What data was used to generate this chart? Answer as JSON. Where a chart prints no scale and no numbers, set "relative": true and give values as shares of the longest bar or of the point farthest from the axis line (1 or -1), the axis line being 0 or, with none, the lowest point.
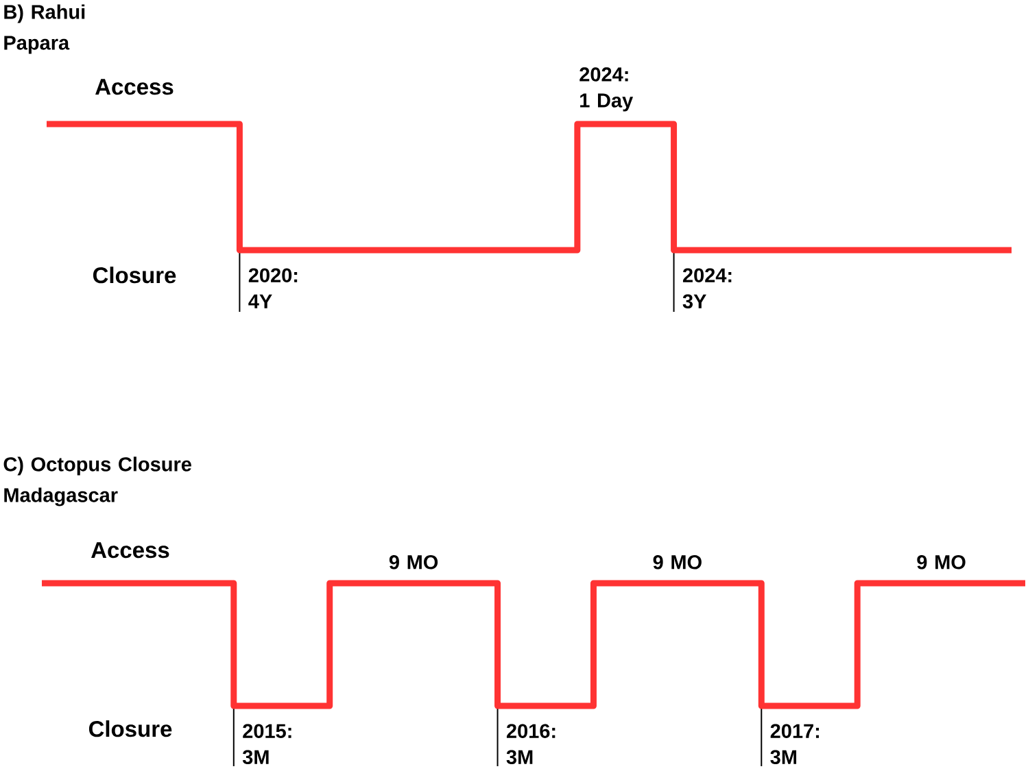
{
  "chart_data": [
    {
      "type": "step",
      "title": "B) Rahui Papara",
      "relative": true,
      "categories": [
        null,
        null,
        null,
        null,
        null,
        null,
        null,
        null,
        null,
        null,
        null,
        null,
        null,
        null,
        null,
        null,
        null,
        null,
        null,
        null,
        null
      ],
      "values": [
        1,
        1,
        1,
        1,
        0,
        0,
        0,
        0,
        0,
        0,
        0,
        1,
        1,
        0,
        0,
        0,
        0,
        0,
        0,
        0,
        0
      ],
      "color": "#ff3333",
      "annotations": [
        "Access",
        "2024: 1 Day",
        "Closure",
        "2020: 4Y",
        "2024: 3Y"
      ]
    },
    {
      "type": "step",
      "title": "C) Octopus Closure Madagascar",
      "relative": true,
      "categories": [
        null,
        null,
        null,
        null,
        null,
        null,
        null,
        null,
        null,
        null,
        null,
        null,
        null,
        null,
        null,
        null,
        null,
        null,
        null,
        null,
        null,
        null,
        null,
        null,
        null,
        null,
        null,
        null,
        null,
        null,
        null,
        null,
        null,
        null,
        null,
        null,
        null,
        null,
        null,
        null,
        null,
        null
      ],
      "values": [
        1,
        1,
        1,
        1,
        1,
        1,
        1,
        1,
        0,
        0,
        0,
        0,
        1,
        1,
        1,
        1,
        1,
        1,
        1,
        0,
        0,
        0,
        0,
        1,
        1,
        1,
        1,
        1,
        1,
        1,
        0,
        0,
        0,
        0,
        1,
        1,
        1,
        1,
        1,
        1,
        1,
        1
      ],
      "color": "#ff3333",
      "annotations": [
        "Access",
        "9 MO",
        "9 MO",
        "9 MO",
        "Closure",
        "2015: 3M",
        "2016: 3M",
        "2017: 3M"
      ]
    }
  ]
}
